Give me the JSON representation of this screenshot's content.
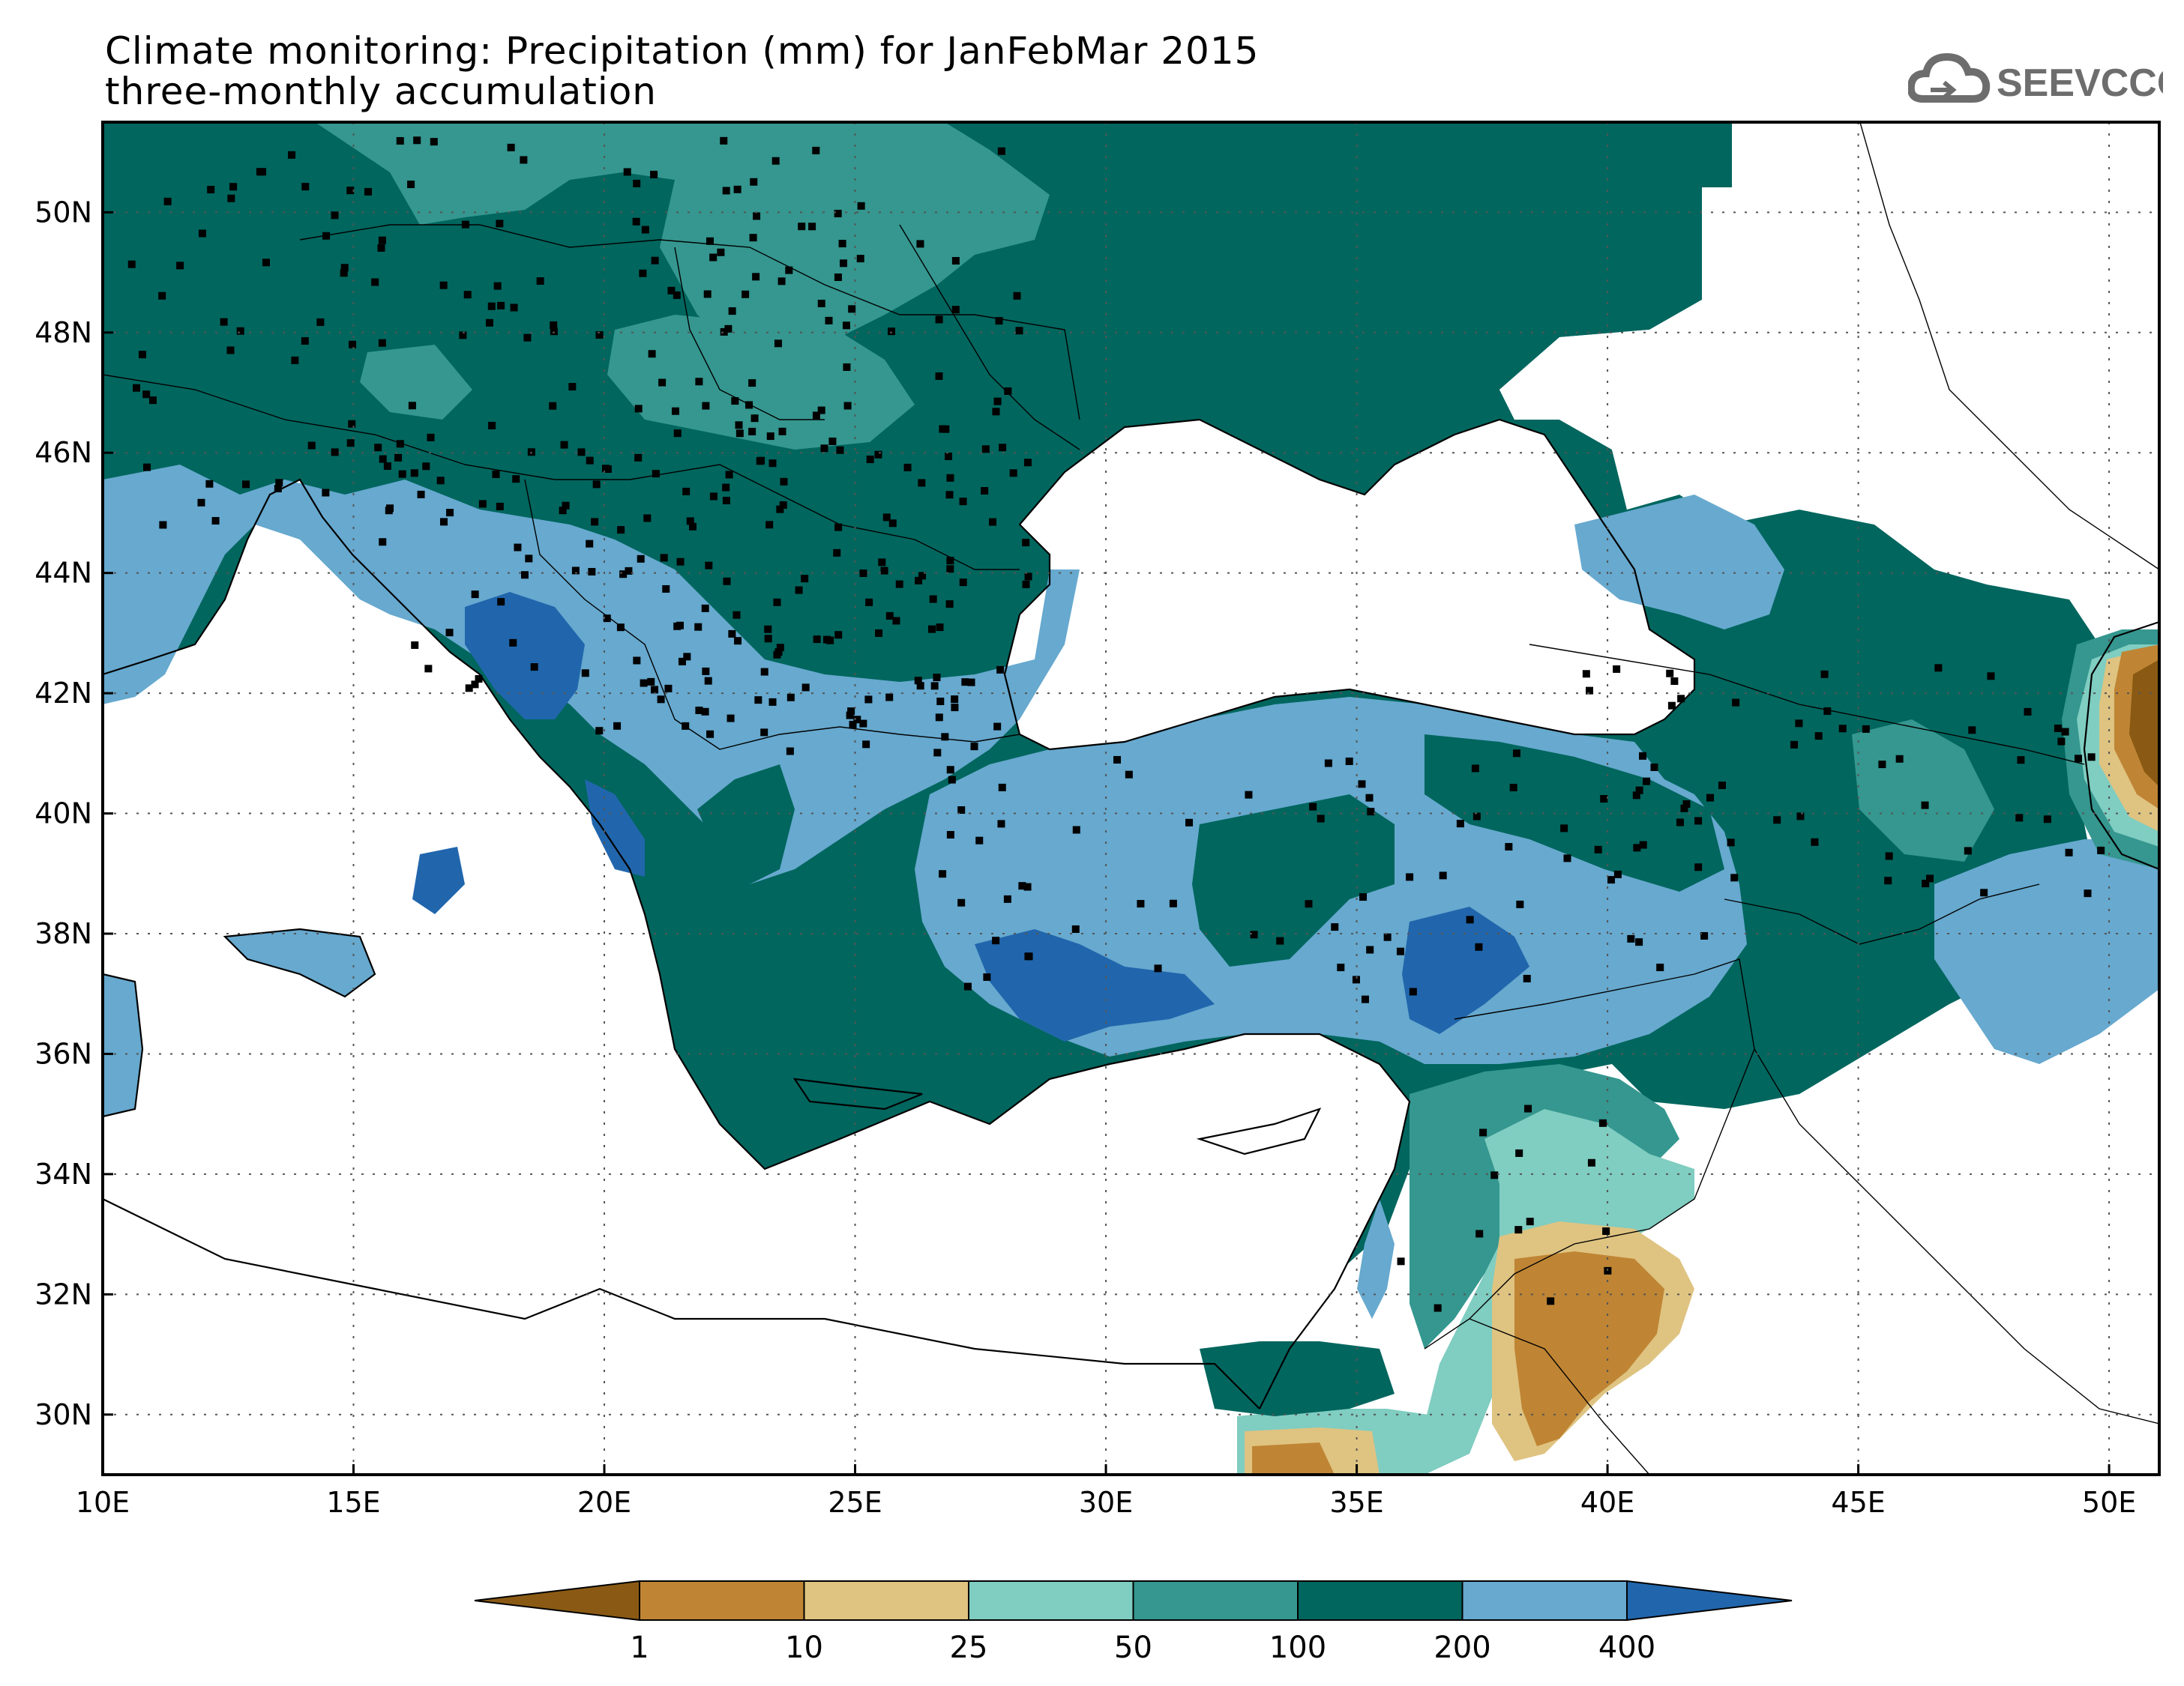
{
  "title": {
    "line1": "Climate monitoring: Precipitation (mm) for JanFebMar 2015",
    "line2": "three-monthly accumulation"
  },
  "logo": {
    "text": "SEEVCCC",
    "icon": "cloud-icon",
    "color": "#6d6d6d"
  },
  "map": {
    "lon_range": [
      10,
      51
    ],
    "lat_range": [
      29,
      51.5
    ],
    "lon_ticks": [
      {
        "value": 10,
        "label": "10E"
      },
      {
        "value": 15,
        "label": "15E"
      },
      {
        "value": 20,
        "label": "20E"
      },
      {
        "value": 25,
        "label": "25E"
      },
      {
        "value": 30,
        "label": "30E"
      },
      {
        "value": 35,
        "label": "35E"
      },
      {
        "value": 40,
        "label": "40E"
      },
      {
        "value": 45,
        "label": "45E"
      },
      {
        "value": 50,
        "label": "50E"
      }
    ],
    "lat_ticks": [
      {
        "value": 30,
        "label": "30N"
      },
      {
        "value": 32,
        "label": "32N"
      },
      {
        "value": 34,
        "label": "34N"
      },
      {
        "value": 36,
        "label": "36N"
      },
      {
        "value": 38,
        "label": "38N"
      },
      {
        "value": 40,
        "label": "40N"
      },
      {
        "value": 42,
        "label": "42N"
      },
      {
        "value": 44,
        "label": "44N"
      },
      {
        "value": 46,
        "label": "46N"
      },
      {
        "value": 48,
        "label": "48N"
      },
      {
        "value": 50,
        "label": "50N"
      }
    ],
    "grid": "dotted"
  },
  "colorbar": {
    "colors": [
      "#8a5a14",
      "#bf8534",
      "#dfc381",
      "#80cdc1",
      "#35978f",
      "#01665e",
      "#67a9cf",
      "#2166ac"
    ],
    "labels": [
      "1",
      "10",
      "25",
      "50",
      "100",
      "200",
      "400"
    ]
  }
}
